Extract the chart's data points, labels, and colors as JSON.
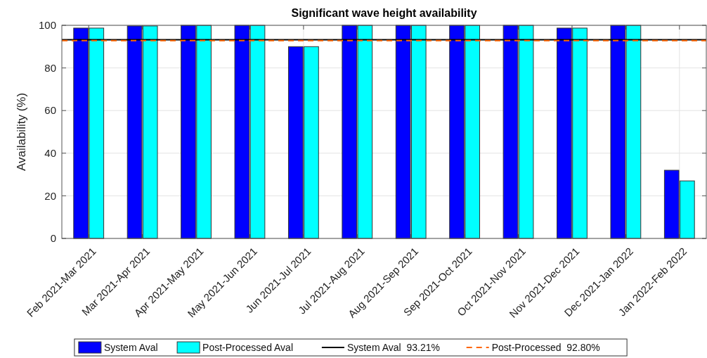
{
  "chart_data": {
    "type": "bar",
    "title": "Significant wave height availability",
    "ylabel": "Availability (%)",
    "categories": [
      "Feb 2021-Mar 2021",
      "Mar 2021-Apr 2021",
      "Apr 2021-May 2021",
      "May 2021-Jun 2021",
      "Jun 2021-Jul 2021",
      "Jul 2021-Aug 2021",
      "Aug 2021-Sep 2021",
      "Sep 2021-Oct 2021",
      "Oct 2021-Nov 2021",
      "Nov 2021-Dec 2021",
      "Dec 2021-Jan 2022",
      "Jan 2022-Feb 2022"
    ],
    "series": [
      {
        "name": "System Aval",
        "color": "#0000ff",
        "values": [
          98.7,
          99.7,
          100,
          100,
          90,
          100,
          100,
          100,
          100,
          98.7,
          100,
          32
        ]
      },
      {
        "name": "Post-Processed Aval",
        "color": "#00ffff",
        "values": [
          98.7,
          99.7,
          100,
          100,
          90,
          100,
          100,
          100,
          100,
          98.7,
          100,
          27
        ]
      }
    ],
    "ref_lines": [
      {
        "axis": "y",
        "value": 93.21,
        "label": "System Aval  93.21%",
        "color": "#000000",
        "line_style": "solid"
      },
      {
        "axis": "y",
        "value": 92.8,
        "label": "Post-Processed  92.80%",
        "color": "#ff6600",
        "line_style": "dashed"
      }
    ],
    "ylim": [
      0,
      100
    ],
    "yticks": [
      0,
      20,
      40,
      60,
      80,
      100
    ],
    "grid": true,
    "legend": "bottom"
  }
}
